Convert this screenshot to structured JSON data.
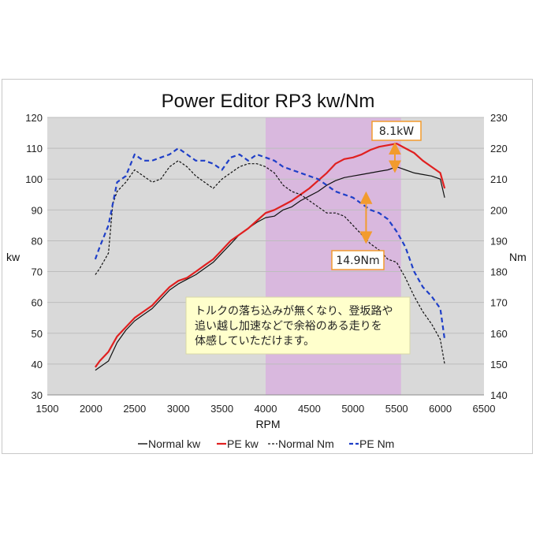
{
  "chart_data": {
    "type": "line",
    "title": "Power Editor RP3 kw/Nm",
    "xlabel": "RPM",
    "ylabel_left": "kw",
    "ylabel_right": "Nm",
    "xlim": [
      1500,
      6500
    ],
    "ylim_left": [
      30,
      120
    ],
    "ylim_right": [
      140,
      230
    ],
    "x_ticks": [
      "1500",
      "2000",
      "2500",
      "3000",
      "3500",
      "4000",
      "4500",
      "5000",
      "5500",
      "6000",
      "6500"
    ],
    "y_ticks_left": [
      "30",
      "40",
      "50",
      "60",
      "70",
      "80",
      "90",
      "100",
      "110",
      "120"
    ],
    "y_ticks_right": [
      "140",
      "150",
      "160",
      "170",
      "180",
      "190",
      "200",
      "210",
      "220",
      "230"
    ],
    "grid": true,
    "highlight_band": {
      "x_from": 4000,
      "x_to": 5550,
      "color": "#d9b8de"
    },
    "legend": {
      "placement": "bottom"
    },
    "series": [
      {
        "name": "Normal kw",
        "axis": "left",
        "color": "#111111",
        "style": "solid",
        "x": [
          2050,
          2100,
          2200,
          2300,
          2400,
          2500,
          2600,
          2700,
          2800,
          2900,
          3000,
          3100,
          3200,
          3300,
          3400,
          3500,
          3600,
          3700,
          3800,
          3900,
          4000,
          4100,
          4200,
          4300,
          4400,
          4500,
          4600,
          4700,
          4800,
          4900,
          5000,
          5100,
          5200,
          5300,
          5400,
          5500,
          5600,
          5700,
          5800,
          5900,
          6000,
          6050
        ],
        "values": [
          38,
          39,
          41,
          47,
          51,
          54,
          56,
          58,
          61,
          64,
          66,
          67.5,
          69,
          71,
          73,
          76,
          79,
          82,
          84,
          86,
          87.5,
          88,
          90,
          91,
          93,
          94.5,
          96,
          98,
          99.5,
          100.5,
          101,
          101.5,
          102,
          102.5,
          103,
          104,
          103,
          102,
          101.5,
          101,
          100,
          94
        ]
      },
      {
        "name": "PE kw",
        "axis": "left",
        "color": "#e02020",
        "style": "solid",
        "x": [
          2050,
          2100,
          2200,
          2300,
          2400,
          2500,
          2600,
          2700,
          2800,
          2900,
          3000,
          3100,
          3200,
          3300,
          3400,
          3500,
          3600,
          3700,
          3800,
          3900,
          4000,
          4100,
          4200,
          4300,
          4400,
          4500,
          4600,
          4700,
          4800,
          4900,
          5000,
          5100,
          5200,
          5300,
          5400,
          5500,
          5600,
          5700,
          5800,
          5900,
          6000,
          6050
        ],
        "values": [
          39,
          41,
          44,
          49,
          52,
          55,
          57,
          59,
          62,
          65,
          67,
          68,
          70,
          72,
          74,
          77,
          80,
          82,
          84,
          86.5,
          89,
          90,
          91.5,
          93,
          95,
          97,
          99.5,
          102,
          105,
          106.5,
          107,
          108,
          109.5,
          110.5,
          111,
          111.5,
          110,
          108.5,
          106,
          104,
          102,
          97
        ]
      },
      {
        "name": "Normal Nm",
        "axis": "right",
        "color": "#111111",
        "style": "dashed",
        "x": [
          2050,
          2100,
          2200,
          2250,
          2300,
          2400,
          2500,
          2600,
          2700,
          2800,
          2900,
          3000,
          3100,
          3200,
          3300,
          3400,
          3500,
          3600,
          3700,
          3800,
          3900,
          4000,
          4100,
          4200,
          4300,
          4400,
          4500,
          4600,
          4700,
          4800,
          4900,
          5000,
          5100,
          5200,
          5300,
          5400,
          5500,
          5600,
          5700,
          5800,
          5900,
          6000,
          6050
        ],
        "values": [
          179,
          181,
          186,
          202,
          206,
          209,
          213,
          211,
          209,
          210,
          214,
          216,
          214,
          211,
          209,
          207,
          210,
          212,
          214,
          215,
          215,
          214,
          212,
          208,
          206,
          205,
          203,
          201,
          199,
          199,
          198,
          195,
          192,
          189,
          187,
          184,
          183,
          178,
          172,
          167,
          163,
          158,
          150
        ]
      },
      {
        "name": "PE Nm",
        "axis": "right",
        "color": "#1f3fc8",
        "style": "dashed",
        "x": [
          2050,
          2100,
          2200,
          2300,
          2400,
          2500,
          2600,
          2700,
          2800,
          2900,
          3000,
          3100,
          3200,
          3300,
          3400,
          3500,
          3600,
          3700,
          3800,
          3900,
          4000,
          4100,
          4200,
          4300,
          4400,
          4500,
          4600,
          4700,
          4800,
          4900,
          5000,
          5100,
          5200,
          5300,
          5400,
          5500,
          5600,
          5700,
          5800,
          5900,
          6000,
          6050
        ],
        "values": [
          184,
          188,
          195,
          209,
          211,
          218,
          216,
          216,
          217,
          218,
          220,
          218,
          216,
          216,
          215,
          213,
          217,
          218,
          216,
          218,
          217,
          216,
          214,
          213,
          212,
          211,
          210,
          208,
          206,
          205,
          204,
          202,
          200,
          199,
          197,
          193,
          188,
          180,
          175,
          172,
          168,
          158
        ]
      }
    ],
    "annotations": [
      {
        "text": "8.1kW",
        "x": 5480,
        "y_from": 103,
        "y_to": 111,
        "axis": "left"
      },
      {
        "text": "14.9Nm",
        "x": 5150,
        "y_from": 190,
        "y_to": 205,
        "axis": "right"
      }
    ],
    "note": "トルクの落ち込みが無くなり、登坂路や追い越し加速などで余裕のある走りを体感していただけます。",
    "note_lines": [
      "トルクの落ち込みが無くなり、登坂路や",
      "追い越し加速などで余裕のある走りを",
      "体感していただけます。"
    ],
    "legend_labels": [
      "Normal kw",
      "PE kw",
      "Normal Nm",
      "PE Nm"
    ]
  }
}
